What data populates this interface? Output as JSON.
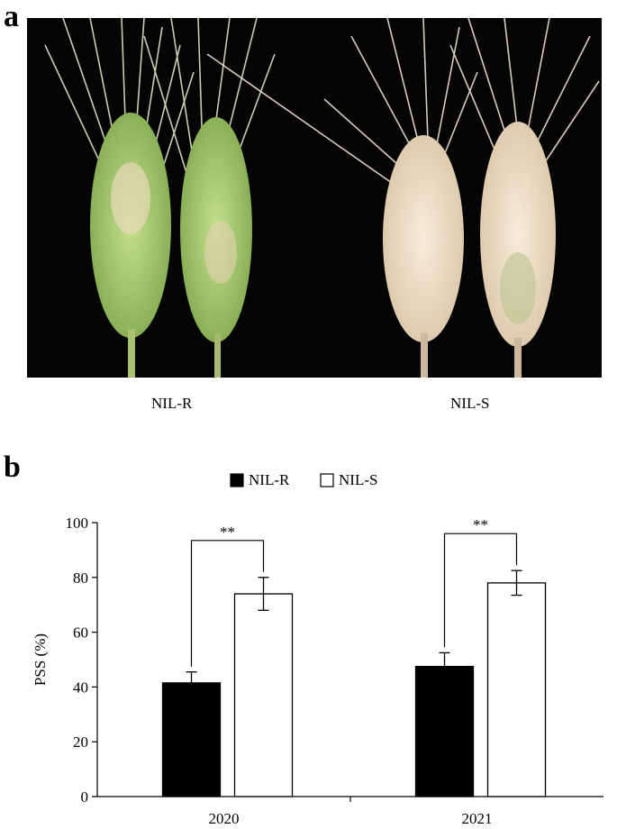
{
  "panel_a": {
    "letter": "a",
    "labels": [
      "NIL-R",
      "NIL-S"
    ]
  },
  "panel_b": {
    "letter": "b"
  },
  "chart_data": {
    "type": "bar",
    "categories": [
      "2020",
      "2021"
    ],
    "series": [
      {
        "name": "NIL-R",
        "values": [
          41.5,
          47.5
        ],
        "errors": [
          4.0,
          5.0
        ],
        "fill": "#000000"
      },
      {
        "name": "NIL-S",
        "values": [
          74.0,
          78.0
        ],
        "errors": [
          6.0,
          4.5
        ],
        "fill": "#ffffff"
      }
    ],
    "significance": [
      "**",
      "**"
    ],
    "ylabel": "PSS (%)",
    "ylim": [
      0,
      100
    ],
    "yticks": [
      0,
      20,
      40,
      60,
      80,
      100
    ],
    "legend": "top-center",
    "grid": false
  },
  "colors": {
    "background_photo": "#040404",
    "resistant_spike_green": "#9dc46a",
    "susceptible_spike_bleached": "#ecdcc4"
  }
}
